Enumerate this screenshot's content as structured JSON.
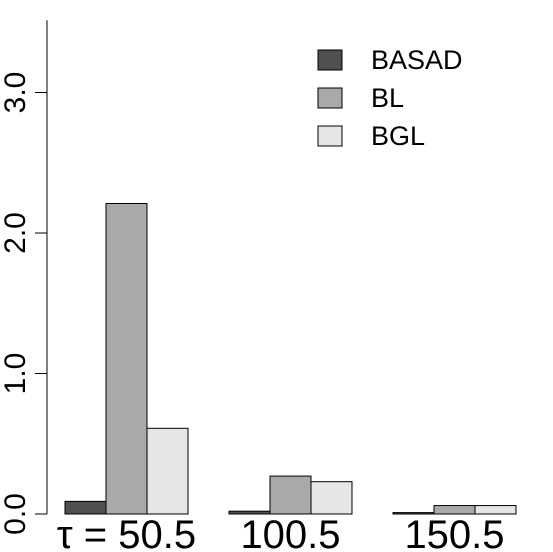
{
  "chart_data": {
    "type": "bar",
    "categories": [
      "τ = 50.5",
      "100.5",
      "150.5"
    ],
    "series": [
      {
        "name": "BASAD",
        "values": [
          0.09,
          0.02,
          0.01
        ],
        "color": "#505050"
      },
      {
        "name": "BL",
        "values": [
          2.21,
          0.27,
          0.06
        ],
        "color": "#a9a9a9"
      },
      {
        "name": "BGL",
        "values": [
          0.61,
          0.23,
          0.06
        ],
        "color": "#e6e6e6"
      }
    ],
    "yticks": [
      0.0,
      1.0,
      2.0,
      3.0
    ],
    "ytick_labels": [
      "0.0",
      "1.0",
      "2.0",
      "3.0"
    ],
    "ylim": [
      0,
      3.5
    ],
    "grid": false,
    "legend_position": "top-right"
  }
}
